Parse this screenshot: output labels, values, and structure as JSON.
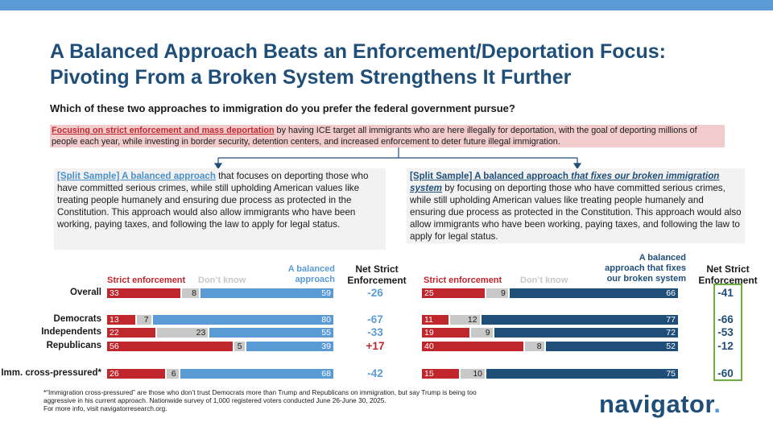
{
  "title_line1": "A Balanced Approach Beats an Enforcement/Deportation Focus:",
  "title_line2": "Pivoting From a Broken System Strengthens It Further",
  "question": "Which of these two approaches to immigration do you prefer the federal government pursue?",
  "option_enforcement": {
    "highlight": "Focusing on strict enforcement and mass deportation",
    "text": " by having ICE target all immigrants who are here illegally for deportation, with the goal of deporting millions of people each year, while investing in border security, detention centers, and increased enforcement to deter future illegal immigration."
  },
  "option_balanced": {
    "highlight": "[Split Sample] A balanced approach",
    "text": " that focuses on deporting those who have committed serious crimes, while still upholding American values like treating people humanely and ensuring due process as protected in the Constitution. This approach would also allow immigrants who have been working, paying taxes, and following the law to apply for legal status."
  },
  "option_fixes": {
    "highlight_a": "[Split Sample] A balanced approach ",
    "highlight_b": "that fixes our broken immigration system",
    "text": " by focusing on deporting those who have committed serious crimes, while still upholding American values like treating people humanely and ensuring due process as protected in the Constitution. This approach would also allow immigrants who have been working, paying taxes, and following the law to apply for legal status."
  },
  "colors": {
    "strict": "#c0272d",
    "dont_know": "#c8c8c8",
    "balanced": "#5b9bd5",
    "fixes": "#1f4e79",
    "highlight": "#70ad47"
  },
  "chart_data": [
    {
      "type": "bar",
      "stacked": true,
      "orientation": "horizontal",
      "categories": [
        "Overall",
        "Democrats",
        "Independents",
        "Republicans",
        "Imm. cross-pressured*"
      ],
      "series": [
        {
          "name": "Strict enforcement",
          "values": [
            33,
            13,
            22,
            56,
            26
          ]
        },
        {
          "name": "Don't know",
          "values": [
            8,
            7,
            23,
            5,
            6
          ]
        },
        {
          "name": "A balanced approach",
          "values": [
            59,
            80,
            55,
            39,
            68
          ]
        }
      ],
      "net_label": "Net Strict Enforcement",
      "net": [
        "-26",
        "-67",
        "-33",
        "+17",
        "-42"
      ]
    },
    {
      "type": "bar",
      "stacked": true,
      "orientation": "horizontal",
      "categories": [
        "Overall",
        "Democrats",
        "Independents",
        "Republicans",
        "Imm. cross-pressured*"
      ],
      "series": [
        {
          "name": "Strict enforcement",
          "values": [
            25,
            11,
            19,
            40,
            15
          ]
        },
        {
          "name": "Don't know",
          "values": [
            9,
            12,
            9,
            8,
            10
          ]
        },
        {
          "name": "A balanced approach that fixes our broken system",
          "values": [
            66,
            77,
            72,
            52,
            75
          ]
        }
      ],
      "net_label": "Net Strict Enforcement",
      "net": [
        "-41",
        "-66",
        "-53",
        "-12",
        "-60"
      ]
    }
  ],
  "headers": {
    "strict": "Strict enforcement",
    "dont_know": "Don’t know",
    "balanced_1": "A balanced",
    "balanced_2": "approach",
    "fixes_1": "A balanced",
    "fixes_2": "approach that fixes",
    "fixes_3": "our broken system",
    "net_1": "Net Strict",
    "net_2": "Enforcement"
  },
  "footer": {
    "line1": "*“Immigration cross-pressured” are those who don’t trust Democrats more than Trump and Republicans on immigration, but say Trump is being too",
    "line2": "aggressive in his current approach. Nationwide survey of 1,000 registered voters conducted June 26-June 30, 2025.",
    "line3": "For more info, visit navigatorresearch.org."
  },
  "logo": {
    "word": "navigator",
    "dot": "."
  }
}
